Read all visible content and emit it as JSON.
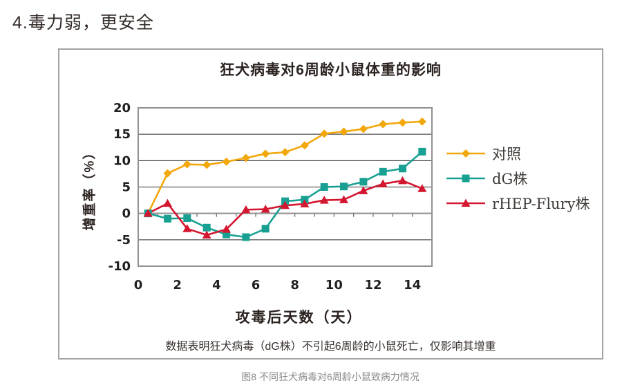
{
  "page": {
    "heading": "4.毒力弱，更安全",
    "caption": "图8 不同狂犬病毒对6周龄小鼠致病力情况"
  },
  "chart_data": {
    "type": "line",
    "title": "狂犬病毒对6周龄小鼠体重的影响",
    "xlabel": "攻毒后天数（天）",
    "ylabel": "增重率（%）",
    "note": "数据表明狂犬病毒（dG株）不引起6周龄的小鼠死亡，仅影响其增重",
    "x": [
      0,
      1,
      2,
      3,
      4,
      5,
      6,
      7,
      8,
      9,
      10,
      11,
      12,
      13,
      14
    ],
    "x_tick_days": [
      0,
      2,
      4,
      6,
      8,
      10,
      12,
      14
    ],
    "x_tick_labels": [
      "0",
      "2",
      "4",
      "6",
      "8",
      "10",
      "12",
      "14"
    ],
    "y_ticks": [
      20,
      15,
      10,
      5,
      0,
      -5,
      -10
    ],
    "ylim": [
      -10,
      20
    ],
    "grid": true,
    "legend_position": "right",
    "axis_color": "#909090",
    "gridline_color": "#262626",
    "tick_text_color": "#1f1f1f",
    "series": [
      {
        "name": "对照",
        "marker": "diamond",
        "color": "#F2A70B",
        "values": [
          0,
          7.6,
          9.3,
          9.2,
          9.8,
          10.5,
          11.3,
          11.6,
          12.9,
          15.1,
          15.5,
          16.0,
          16.9,
          17.2,
          17.4
        ]
      },
      {
        "name": "dG株",
        "marker": "square",
        "color": "#18A092",
        "values": [
          0,
          -1.0,
          -0.9,
          -2.7,
          -4.0,
          -4.5,
          -2.9,
          2.3,
          2.6,
          5.0,
          5.1,
          6.0,
          7.9,
          8.5,
          11.7
        ]
      },
      {
        "name": "rHEP-Flury株",
        "marker": "triangle",
        "color": "#D41730",
        "values": [
          0,
          1.9,
          -2.9,
          -4.1,
          -3.0,
          0.7,
          0.8,
          1.5,
          1.8,
          2.5,
          2.6,
          4.3,
          5.6,
          6.2,
          4.7
        ]
      }
    ]
  }
}
